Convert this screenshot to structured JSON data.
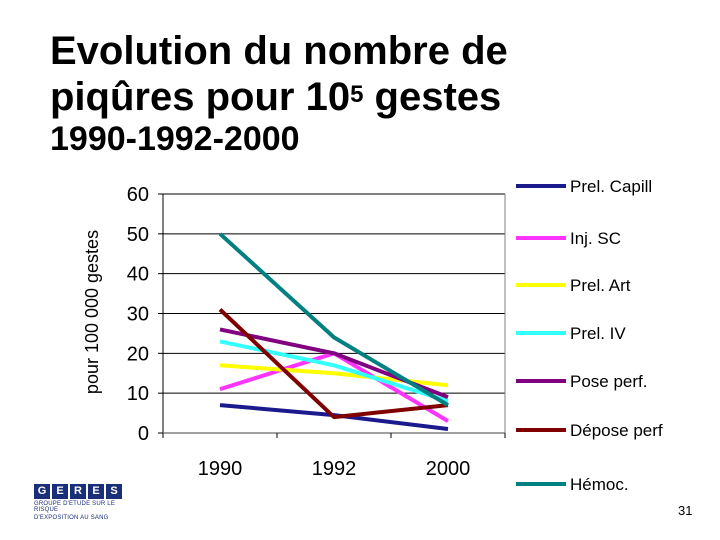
{
  "title_line1": "Evolution du nombre de",
  "title_line2_prefix": "piqûres pour 10",
  "title_line2_sup": "5",
  "title_line2_suffix": " gestes",
  "subtitle": "1990-1992-2000",
  "logo": {
    "letters": [
      "G",
      "E",
      "R",
      "E",
      "S"
    ],
    "line1": "GROUPE D'ETUDE SUR LE RISQUE",
    "line2": "D'EXPOSITION AU SANG"
  },
  "page_number": "31",
  "chart_data": {
    "type": "line",
    "title": "Evolution du nombre de piqûres pour 10^5 gestes 1990-1992-2000",
    "xlabel": "",
    "ylabel": "pour 100 000 gestes",
    "categories": [
      "1990",
      "1992",
      "2000"
    ],
    "ylim": [
      0,
      60
    ],
    "yticks": [
      0,
      10,
      20,
      30,
      40,
      50,
      60
    ],
    "legend_position": "right",
    "series": [
      {
        "name": "Prel. Capill",
        "color": "#1a1a8c",
        "values": [
          7,
          4.5,
          1
        ]
      },
      {
        "name": "Inj. SC",
        "color": "#ff33ff",
        "values": [
          11,
          20,
          3
        ]
      },
      {
        "name": "Prel. Art",
        "color": "#ffff00",
        "values": [
          17,
          15,
          12
        ]
      },
      {
        "name": "Prel. IV",
        "color": "#33ffff",
        "values": [
          23,
          17,
          8
        ]
      },
      {
        "name": "Pose perf.",
        "color": "#800080",
        "values": [
          26,
          20,
          9
        ]
      },
      {
        "name": "Dépose perf",
        "color": "#800000",
        "values": [
          31,
          4,
          7
        ]
      },
      {
        "name": "Hémoc.",
        "color": "#008080",
        "values": [
          50,
          24,
          7
        ]
      }
    ]
  }
}
